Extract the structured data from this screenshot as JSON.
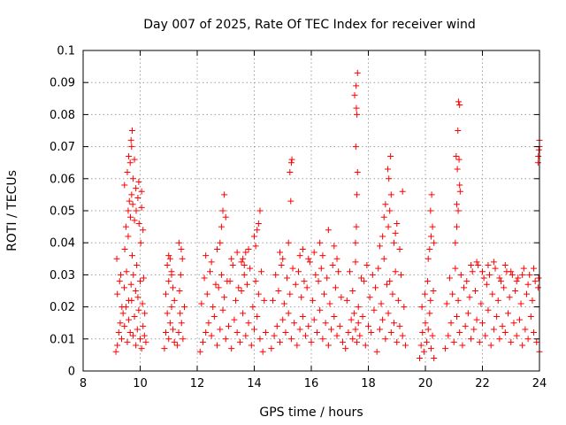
{
  "chart_data": {
    "type": "scatter",
    "title": "Day 007 of 2025, Rate Of TEC Index for receiver wind",
    "xlabel": "GPS time / hours",
    "ylabel": "ROTI / TECUs",
    "xlim": [
      8,
      24
    ],
    "ylim": [
      0,
      0.1
    ],
    "xticks": [
      "8",
      "10",
      "12",
      "14",
      "16",
      "18",
      "20",
      "22",
      "24"
    ],
    "yticks": [
      "0",
      "0.01",
      "0.02",
      "0.03",
      "0.04",
      "0.05",
      "0.06",
      "0.07",
      "0.08",
      "0.09",
      "0.1"
    ],
    "grid": true,
    "marker": "+",
    "color": "#ff0000",
    "series": [
      {
        "x": [
          9.15,
          9.2,
          9.25,
          9.3,
          9.35,
          9.4,
          9.45,
          9.5,
          9.55,
          9.6,
          9.65,
          9.7,
          9.75,
          9.8,
          9.85,
          9.9,
          9.95,
          10.0,
          10.05,
          10.1,
          10.15,
          10.2,
          9.2,
          9.28,
          9.36,
          9.44,
          9.52,
          9.6,
          9.68,
          9.76,
          9.84,
          9.92,
          10.0,
          10.08,
          10.16,
          9.18,
          9.32,
          9.46,
          9.58,
          9.72,
          9.88,
          10.02,
          10.12,
          9.5,
          9.58,
          9.62,
          9.66,
          9.7,
          9.74,
          9.8,
          9.86,
          9.92,
          9.96,
          10.05,
          10.1,
          9.45,
          9.55,
          9.65,
          9.75,
          9.85,
          9.95,
          10.05,
          9.6,
          9.7,
          9.8,
          9.68,
          9.72,
          10.85,
          10.9,
          10.95,
          11.0,
          11.05,
          11.1,
          11.15,
          11.2,
          10.9,
          11.0,
          11.1,
          11.2,
          10.95,
          11.05,
          11.15,
          11.0,
          11.1,
          11.3,
          11.35,
          11.4,
          11.45,
          11.5,
          11.55,
          11.38,
          11.42,
          11.48,
          11.36,
          11.44,
          12.1,
          12.2,
          12.3,
          12.4,
          12.5,
          12.6,
          12.7,
          12.8,
          12.9,
          13.0,
          13.1,
          13.2,
          13.3,
          13.4,
          13.5,
          13.6,
          13.7,
          13.8,
          13.9,
          14.0,
          14.1,
          14.2,
          14.3,
          14.4,
          12.15,
          12.35,
          12.55,
          12.75,
          12.95,
          13.15,
          13.35,
          13.55,
          13.75,
          13.95,
          14.15,
          14.35,
          12.25,
          12.45,
          12.65,
          12.85,
          13.05,
          13.25,
          13.45,
          13.65,
          13.85,
          14.05,
          14.25,
          12.8,
          12.85,
          12.9,
          12.95,
          13.0,
          13.6,
          13.7,
          13.8,
          13.55,
          14.0,
          14.1,
          14.2,
          14.15,
          14.05,
          13.65,
          12.3,
          12.5,
          12.7,
          13.2,
          13.4,
          14.6,
          14.7,
          14.8,
          14.9,
          15.0,
          15.1,
          15.2,
          15.3,
          15.4,
          15.5,
          15.6,
          15.7,
          15.8,
          15.9,
          16.0,
          16.1,
          16.2,
          16.3,
          16.4,
          16.5,
          16.6,
          16.7,
          16.8,
          16.9,
          17.0,
          17.1,
          14.65,
          14.85,
          15.05,
          15.25,
          15.45,
          15.65,
          15.85,
          16.05,
          16.25,
          16.45,
          16.65,
          16.85,
          17.05,
          14.75,
          14.95,
          15.15,
          15.35,
          15.55,
          15.75,
          15.95,
          16.15,
          16.35,
          16.55,
          16.75,
          16.95,
          14.9,
          15.0,
          15.2,
          15.25,
          15.3,
          15.28,
          15.32,
          15.6,
          15.7,
          15.9,
          16.1,
          16.3,
          16.4,
          16.6,
          16.8,
          16.9,
          17.2,
          17.3,
          17.4,
          17.45,
          17.5,
          17.55,
          17.6,
          17.65,
          17.7,
          17.8,
          17.9,
          18.0,
          18.1,
          18.2,
          18.3,
          18.4,
          18.5,
          18.6,
          18.7,
          18.8,
          18.9,
          19.0,
          19.1,
          19.2,
          19.3,
          17.25,
          17.45,
          17.65,
          17.85,
          18.05,
          18.25,
          18.45,
          18.65,
          18.85,
          19.05,
          19.25,
          17.35,
          17.55,
          17.75,
          17.95,
          18.15,
          18.35,
          18.55,
          18.75,
          18.95,
          19.15,
          17.55,
          17.58,
          17.6,
          17.62,
          17.56,
          17.6,
          17.58,
          17.52,
          17.57,
          17.62,
          18.7,
          18.75,
          18.8,
          18.72,
          18.68,
          18.78,
          18.6,
          18.5,
          18.9,
          19.0,
          19.1,
          19.2,
          18.4,
          18.55,
          18.95,
          19.8,
          19.85,
          19.9,
          19.95,
          20.0,
          20.05,
          20.1,
          20.15,
          20.2,
          20.25,
          20.3,
          19.88,
          19.98,
          20.08,
          20.18,
          20.28,
          20.1,
          20.15,
          20.2,
          20.25,
          20.3,
          20.22,
          20.18,
          20.7,
          20.8,
          20.9,
          21.0,
          21.1,
          21.2,
          21.3,
          21.4,
          21.5,
          21.6,
          21.7,
          21.8,
          21.9,
          22.0,
          22.1,
          22.2,
          22.3,
          22.4,
          22.5,
          22.6,
          22.7,
          22.8,
          22.9,
          23.0,
          23.1,
          23.2,
          23.3,
          23.4,
          23.5,
          23.6,
          23.7,
          23.8,
          23.9,
          24.0,
          20.75,
          20.95,
          21.15,
          21.35,
          21.55,
          21.75,
          21.95,
          22.15,
          22.35,
          22.55,
          22.75,
          22.95,
          23.15,
          23.35,
          23.55,
          23.75,
          23.95,
          20.85,
          21.05,
          21.25,
          21.45,
          21.65,
          21.85,
          22.05,
          22.25,
          22.45,
          22.65,
          22.85,
          23.05,
          23.25,
          23.45,
          23.65,
          23.85,
          21.05,
          21.1,
          21.15,
          21.2,
          21.12,
          21.18,
          21.08,
          21.14,
          21.2,
          21.16,
          21.1,
          21.22,
          22.2,
          22.4,
          22.6,
          22.8,
          23.0,
          23.2,
          23.4,
          23.6,
          23.8,
          23.95,
          24.0,
          23.98,
          23.96,
          24.0,
          23.97,
          22.0,
          21.6,
          21.8
        ],
        "y": [
          0.006,
          0.008,
          0.012,
          0.015,
          0.01,
          0.018,
          0.014,
          0.02,
          0.009,
          0.016,
          0.012,
          0.022,
          0.011,
          0.017,
          0.008,
          0.013,
          0.019,
          0.01,
          0.007,
          0.014,
          0.011,
          0.009,
          0.024,
          0.028,
          0.02,
          0.026,
          0.031,
          0.022,
          0.027,
          0.03,
          0.025,
          0.023,
          0.028,
          0.021,
          0.018,
          0.035,
          0.03,
          0.038,
          0.042,
          0.036,
          0.033,
          0.04,
          0.029,
          0.045,
          0.05,
          0.053,
          0.048,
          0.055,
          0.052,
          0.047,
          0.05,
          0.054,
          0.046,
          0.051,
          0.044,
          0.058,
          0.062,
          0.065,
          0.06,
          0.057,
          0.059,
          0.056,
          0.067,
          0.07,
          0.066,
          0.072,
          0.075,
          0.007,
          0.012,
          0.018,
          0.01,
          0.015,
          0.02,
          0.013,
          0.009,
          0.024,
          0.028,
          0.03,
          0.022,
          0.033,
          0.035,
          0.026,
          0.036,
          0.031,
          0.008,
          0.012,
          0.018,
          0.015,
          0.01,
          0.02,
          0.025,
          0.03,
          0.035,
          0.04,
          0.038,
          0.006,
          0.009,
          0.012,
          0.015,
          0.011,
          0.017,
          0.008,
          0.013,
          0.019,
          0.01,
          0.014,
          0.007,
          0.016,
          0.012,
          0.009,
          0.018,
          0.011,
          0.015,
          0.008,
          0.013,
          0.017,
          0.01,
          0.006,
          0.012,
          0.021,
          0.024,
          0.02,
          0.026,
          0.023,
          0.028,
          0.022,
          0.025,
          0.027,
          0.02,
          0.024,
          0.022,
          0.029,
          0.031,
          0.027,
          0.03,
          0.028,
          0.033,
          0.026,
          0.03,
          0.032,
          0.028,
          0.031,
          0.04,
          0.045,
          0.05,
          0.055,
          0.048,
          0.035,
          0.037,
          0.038,
          0.034,
          0.042,
          0.044,
          0.05,
          0.046,
          0.039,
          0.033,
          0.036,
          0.034,
          0.038,
          0.035,
          0.037,
          0.007,
          0.011,
          0.014,
          0.009,
          0.016,
          0.012,
          0.018,
          0.01,
          0.015,
          0.008,
          0.013,
          0.017,
          0.011,
          0.014,
          0.009,
          0.016,
          0.012,
          0.019,
          0.01,
          0.015,
          0.008,
          0.013,
          0.017,
          0.011,
          0.014,
          0.009,
          0.022,
          0.025,
          0.021,
          0.024,
          0.027,
          0.023,
          0.026,
          0.022,
          0.028,
          0.024,
          0.021,
          0.026,
          0.023,
          0.03,
          0.033,
          0.029,
          0.032,
          0.031,
          0.028,
          0.034,
          0.03,
          0.032,
          0.029,
          0.033,
          0.031,
          0.037,
          0.035,
          0.04,
          0.062,
          0.065,
          0.053,
          0.066,
          0.036,
          0.038,
          0.035,
          0.037,
          0.04,
          0.036,
          0.044,
          0.039,
          0.035,
          0.007,
          0.012,
          0.016,
          0.01,
          0.018,
          0.013,
          0.009,
          0.015,
          0.011,
          0.017,
          0.008,
          0.014,
          0.012,
          0.019,
          0.006,
          0.013,
          0.016,
          0.01,
          0.018,
          0.012,
          0.015,
          0.009,
          0.014,
          0.011,
          0.008,
          0.022,
          0.025,
          0.02,
          0.028,
          0.023,
          0.026,
          0.021,
          0.027,
          0.024,
          0.022,
          0.02,
          0.031,
          0.034,
          0.029,
          0.033,
          0.03,
          0.032,
          0.035,
          0.028,
          0.031,
          0.03,
          0.04,
          0.045,
          0.055,
          0.062,
          0.07,
          0.08,
          0.082,
          0.086,
          0.089,
          0.093,
          0.045,
          0.05,
          0.055,
          0.06,
          0.063,
          0.067,
          0.052,
          0.042,
          0.04,
          0.046,
          0.038,
          0.056,
          0.039,
          0.048,
          0.043,
          0.004,
          0.008,
          0.012,
          0.006,
          0.015,
          0.009,
          0.013,
          0.018,
          0.007,
          0.011,
          0.004,
          0.02,
          0.024,
          0.028,
          0.022,
          0.025,
          0.035,
          0.038,
          0.042,
          0.045,
          0.04,
          0.055,
          0.05,
          0.007,
          0.011,
          0.015,
          0.009,
          0.017,
          0.012,
          0.008,
          0.014,
          0.018,
          0.01,
          0.013,
          0.016,
          0.009,
          0.015,
          0.011,
          0.019,
          0.008,
          0.013,
          0.017,
          0.01,
          0.014,
          0.012,
          0.018,
          0.009,
          0.015,
          0.011,
          0.016,
          0.008,
          0.013,
          0.01,
          0.017,
          0.012,
          0.009,
          0.006,
          0.021,
          0.024,
          0.022,
          0.026,
          0.023,
          0.025,
          0.021,
          0.027,
          0.024,
          0.022,
          0.026,
          0.023,
          0.025,
          0.021,
          0.024,
          0.022,
          0.026,
          0.029,
          0.032,
          0.03,
          0.028,
          0.031,
          0.033,
          0.029,
          0.03,
          0.032,
          0.028,
          0.031,
          0.03,
          0.029,
          0.032,
          0.03,
          0.028,
          0.04,
          0.045,
          0.05,
          0.058,
          0.063,
          0.066,
          0.067,
          0.075,
          0.083,
          0.084,
          0.052,
          0.056,
          0.033,
          0.034,
          0.029,
          0.033,
          0.031,
          0.028,
          0.03,
          0.027,
          0.032,
          0.065,
          0.072,
          0.069,
          0.067,
          0.07,
          0.029,
          0.031,
          0.033,
          0.034
        ]
      }
    ]
  }
}
